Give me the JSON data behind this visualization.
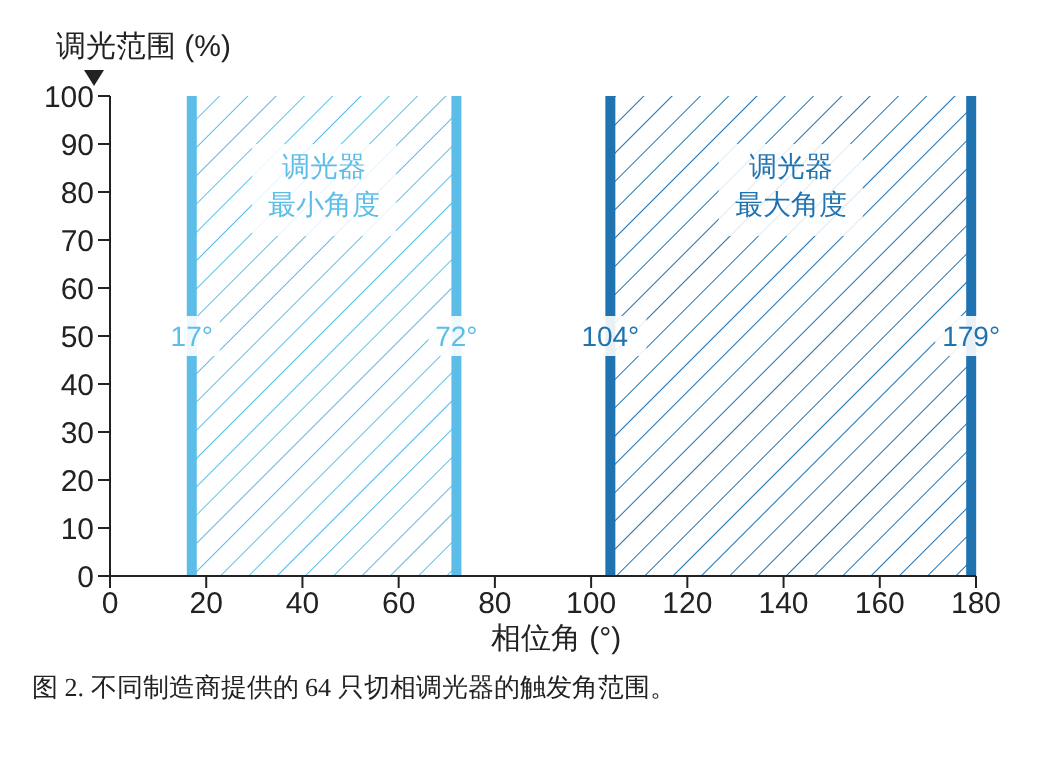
{
  "chart_data": {
    "type": "area",
    "xlabel": "相位角 (°)",
    "ylabel": "调光范围 (%)",
    "xlim": [
      0,
      180
    ],
    "ylim": [
      0,
      100
    ],
    "xticks": [
      0,
      20,
      40,
      60,
      80,
      100,
      120,
      140,
      160,
      180
    ],
    "yticks": [
      0,
      10,
      20,
      30,
      40,
      50,
      60,
      70,
      80,
      90,
      100
    ],
    "series": [
      {
        "name": "调光器最小角度",
        "color": "#5bbde8",
        "x": [
          17,
          72
        ],
        "values": [
          100,
          100
        ]
      },
      {
        "name": "调光器最大角度",
        "color": "#1f73b0",
        "x": [
          104,
          179
        ],
        "values": [
          100,
          100
        ]
      }
    ],
    "ref_lines": [
      {
        "axis": "x",
        "value": 17,
        "label": "17°",
        "color": "#5bbde8"
      },
      {
        "axis": "x",
        "value": 72,
        "label": "72°",
        "color": "#5bbde8"
      },
      {
        "axis": "x",
        "value": 104,
        "label": "104°",
        "color": "#1f73b0"
      },
      {
        "axis": "x",
        "value": 179,
        "label": "179°",
        "color": "#1f73b0"
      }
    ],
    "annotations": [
      "图 2. 不同制造商提供的 64 只切相调光器的触发角范围。"
    ]
  }
}
